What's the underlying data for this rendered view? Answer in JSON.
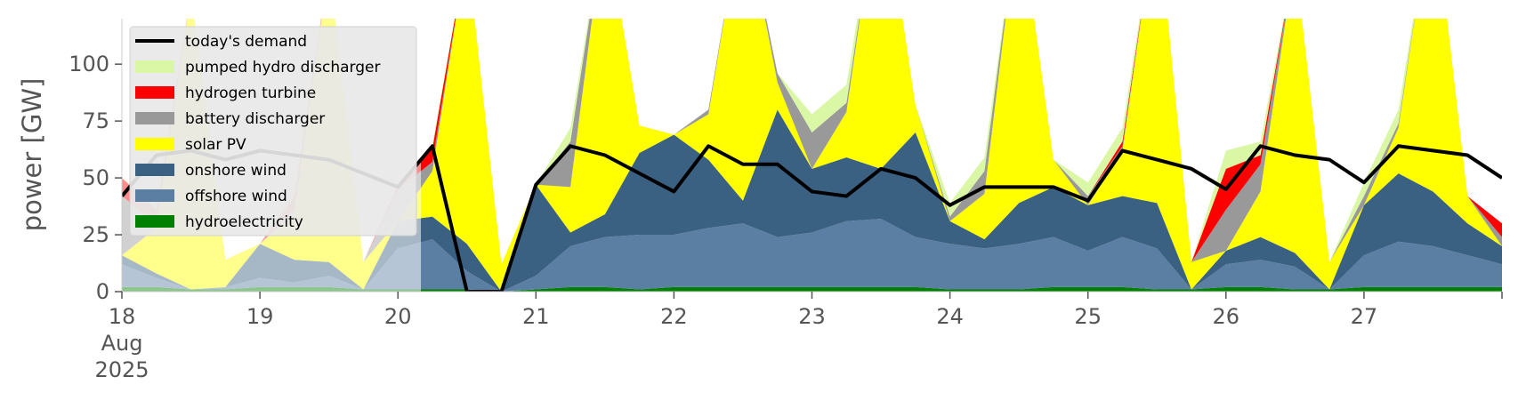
{
  "chart_data": {
    "type": "area",
    "title": "",
    "xlabel": "",
    "ylabel": "power [GW]",
    "ylim": [
      0,
      120
    ],
    "xlim": [
      "2025-08-18 00:00",
      "2025-08-28 00:00"
    ],
    "yticks": [
      0,
      25,
      50,
      75,
      100
    ],
    "xticks": [
      {
        "x": "2025-08-18",
        "label": "18",
        "sublabel": [
          "Aug",
          "2025"
        ]
      },
      {
        "x": "2025-08-19",
        "label": "19"
      },
      {
        "x": "2025-08-20",
        "label": "20"
      },
      {
        "x": "2025-08-21",
        "label": "21"
      },
      {
        "x": "2025-08-22",
        "label": "22"
      },
      {
        "x": "2025-08-23",
        "label": "23"
      },
      {
        "x": "2025-08-24",
        "label": "24"
      },
      {
        "x": "2025-08-25",
        "label": "25"
      },
      {
        "x": "2025-08-26",
        "label": "26"
      },
      {
        "x": "2025-08-27",
        "label": "27"
      }
    ],
    "grid": false,
    "legend_position": "upper-left",
    "legend_entries": [
      "today's demand",
      "pumped hydro discharger",
      "hydrogen turbine",
      "battery discharger",
      "solar PV",
      "onshore wind",
      "offshore wind",
      "hydroelectricity"
    ],
    "x": [
      "2025-08-18 00:00",
      "2025-08-18 06:00",
      "2025-08-18 12:00",
      "2025-08-18 18:00",
      "2025-08-19 00:00",
      "2025-08-19 06:00",
      "2025-08-19 12:00",
      "2025-08-19 18:00",
      "2025-08-20 00:00",
      "2025-08-20 06:00",
      "2025-08-20 12:00",
      "2025-08-20 18:00",
      "2025-08-21 00:00",
      "2025-08-21 06:00",
      "2025-08-21 12:00",
      "2025-08-21 18:00",
      "2025-08-22 00:00",
      "2025-08-22 06:00",
      "2025-08-22 12:00",
      "2025-08-22 18:00",
      "2025-08-23 00:00",
      "2025-08-23 06:00",
      "2025-08-23 12:00",
      "2025-08-23 18:00",
      "2025-08-24 00:00",
      "2025-08-24 06:00",
      "2025-08-24 12:00",
      "2025-08-24 18:00",
      "2025-08-25 00:00",
      "2025-08-25 06:00",
      "2025-08-25 12:00",
      "2025-08-25 18:00",
      "2025-08-26 00:00",
      "2025-08-26 06:00",
      "2025-08-26 12:00",
      "2025-08-26 18:00",
      "2025-08-27 00:00",
      "2025-08-27 06:00",
      "2025-08-27 12:00",
      "2025-08-27 18:00",
      "2025-08-28 00:00"
    ],
    "stack_series": [
      {
        "name": "hydroelectricity",
        "color": "#008000",
        "values": [
          2,
          2,
          1,
          1,
          2,
          2,
          2,
          1,
          1,
          1,
          1,
          0,
          1,
          2,
          2,
          1,
          2,
          2,
          2,
          2,
          2,
          2,
          2,
          2,
          1,
          1,
          1,
          2,
          2,
          2,
          1,
          1,
          2,
          2,
          1,
          1,
          2,
          2,
          2,
          2,
          2
        ]
      },
      {
        "name": "offshore wind",
        "color": "#5b7fa3",
        "values": [
          10,
          4,
          0,
          1,
          4,
          2,
          5,
          0,
          18,
          22,
          8,
          0,
          6,
          18,
          22,
          24,
          23,
          26,
          28,
          22,
          24,
          29,
          30,
          22,
          20,
          18,
          20,
          22,
          16,
          22,
          18,
          0,
          10,
          12,
          10,
          0,
          14,
          20,
          18,
          14,
          10
        ]
      },
      {
        "name": "onshore wind",
        "color": "#3b6182",
        "values": [
          4,
          2,
          0,
          0,
          15,
          10,
          6,
          0,
          12,
          10,
          12,
          0,
          40,
          6,
          10,
          36,
          44,
          30,
          10,
          56,
          28,
          28,
          22,
          46,
          10,
          4,
          18,
          22,
          20,
          18,
          20,
          0,
          6,
          10,
          6,
          0,
          22,
          30,
          24,
          14,
          8
        ]
      },
      {
        "name": "solar PV",
        "color": "#ffff00",
        "values": [
          0,
          20,
          130,
          12,
          0,
          20,
          130,
          12,
          0,
          20,
          130,
          12,
          0,
          20,
          130,
          12,
          0,
          20,
          130,
          12,
          0,
          20,
          130,
          12,
          0,
          20,
          130,
          12,
          0,
          20,
          130,
          12,
          0,
          20,
          130,
          12,
          0,
          20,
          130,
          12,
          0
        ]
      },
      {
        "name": "battery discharger",
        "color": "#999999",
        "values": [
          26,
          2,
          0,
          0,
          0,
          2,
          0,
          0,
          14,
          4,
          0,
          0,
          0,
          20,
          0,
          0,
          0,
          2,
          0,
          4,
          16,
          4,
          0,
          0,
          2,
          10,
          0,
          0,
          4,
          2,
          0,
          0,
          18,
          12,
          0,
          0,
          4,
          2,
          0,
          0,
          4
        ]
      },
      {
        "name": "hydrogen turbine",
        "color": "#ff0000",
        "values": [
          8,
          6,
          0,
          0,
          0,
          6,
          0,
          0,
          2,
          6,
          0,
          0,
          0,
          0,
          0,
          0,
          0,
          0,
          0,
          0,
          0,
          0,
          0,
          0,
          0,
          0,
          0,
          0,
          0,
          2,
          0,
          0,
          18,
          4,
          0,
          0,
          0,
          0,
          0,
          0,
          6
        ]
      },
      {
        "name": "pumped hydro discharger",
        "color": "#daf7a6",
        "values": [
          0,
          4,
          0,
          0,
          0,
          4,
          0,
          0,
          0,
          2,
          0,
          0,
          0,
          6,
          0,
          0,
          0,
          0,
          0,
          0,
          8,
          8,
          0,
          0,
          6,
          6,
          0,
          0,
          6,
          6,
          0,
          0,
          8,
          6,
          0,
          0,
          6,
          6,
          0,
          0,
          0
        ]
      }
    ],
    "demand": {
      "name": "today's demand",
      "color": "#000000",
      "values": [
        42,
        60,
        62,
        58,
        62,
        60,
        58,
        52,
        46,
        64,
        0,
        0,
        47,
        64,
        60,
        52,
        44,
        64,
        56,
        56,
        44,
        42,
        54,
        50,
        38,
        46,
        46,
        46,
        40,
        62,
        58,
        54,
        45,
        64,
        60,
        58,
        48,
        64,
        62,
        60,
        50
      ]
    },
    "shaded_region": {
      "x_start": "2025-08-18 00:00",
      "x_end": "2025-08-20 04:00",
      "color": "#ffffff",
      "opacity": 0.55
    }
  }
}
